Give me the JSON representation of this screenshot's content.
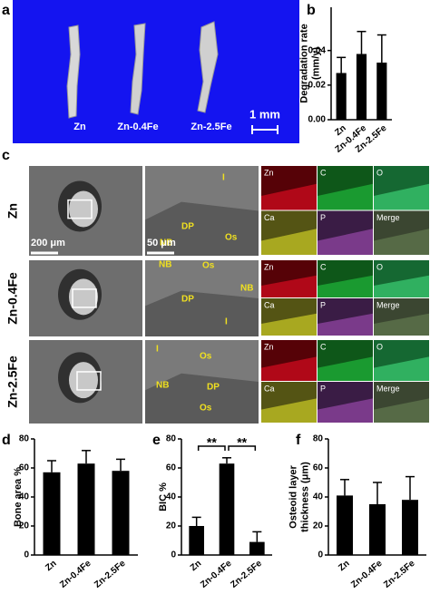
{
  "figure": {
    "panel_labels": [
      "a",
      "b",
      "c",
      "d",
      "e",
      "f"
    ],
    "panel_a": {
      "labels": [
        "Zn",
        "Zn-0.4Fe",
        "Zn-2.5Fe"
      ],
      "scale_bar": "1 mm"
    },
    "panel_c": {
      "rows": [
        {
          "label": "Zn",
          "annotations": [
            "I",
            "DP",
            "NB",
            "Os"
          ]
        },
        {
          "label": "Zn-0.4Fe",
          "annotations": [
            "NB",
            "Os",
            "NB",
            "DP",
            "I"
          ]
        },
        {
          "label": "Zn-2.5Fe",
          "annotations": [
            "I",
            "Os",
            "NB",
            "DP",
            "Os"
          ]
        }
      ],
      "scale_bars": [
        "200 μm",
        "50 μm"
      ],
      "elements": [
        "Zn",
        "C",
        "O",
        "Ca",
        "P",
        "Merge"
      ]
    }
  },
  "chart_data": [
    {
      "type": "bar",
      "ylabel": [
        "Degradation rate",
        "(mm/y)"
      ],
      "categories": [
        "Zn",
        "Zn-0.4Fe",
        "Zn-2.5Fe"
      ],
      "values": [
        0.027,
        0.038,
        0.033
      ],
      "errors": [
        0.009,
        0.013,
        0.016
      ],
      "color": "#000000",
      "ylim": [
        0,
        0.065
      ],
      "yticks": [
        {
          "value": 0,
          "label": "0.00"
        },
        {
          "value": 0.02,
          "label": "0.02"
        },
        {
          "value": 0.04,
          "label": "0.04"
        }
      ]
    },
    {
      "type": "bar",
      "ylabel": [
        "Bone area %"
      ],
      "categories": [
        "Zn",
        "Zn-0.4Fe",
        "Zn-2.5Fe"
      ],
      "values": [
        57,
        63,
        58
      ],
      "errors": [
        8,
        9,
        8
      ],
      "color": "#000000",
      "ylim": [
        0,
        80
      ],
      "yticks": [
        0,
        20,
        40,
        60,
        80
      ]
    },
    {
      "type": "bar",
      "ylabel": [
        "BIC %"
      ],
      "categories": [
        "Zn",
        "Zn-0.4Fe",
        "Zn-2.5Fe"
      ],
      "values": [
        20,
        63,
        9
      ],
      "errors": [
        6,
        4,
        7
      ],
      "color": "#000000",
      "ylim": [
        0,
        80
      ],
      "yticks": [
        0,
        20,
        40,
        60,
        80
      ],
      "annotations": [
        "**",
        "**"
      ]
    },
    {
      "type": "bar",
      "ylabel": [
        "Osteoid layer",
        "thickness (μm)"
      ],
      "categories": [
        "Zn",
        "Zn-0.4Fe",
        "Zn-2.5Fe"
      ],
      "values": [
        41,
        35,
        38
      ],
      "errors": [
        11,
        15,
        16
      ],
      "color": "#000000",
      "ylim": [
        0,
        80
      ],
      "yticks": [
        0,
        20,
        40,
        60,
        80
      ]
    }
  ]
}
